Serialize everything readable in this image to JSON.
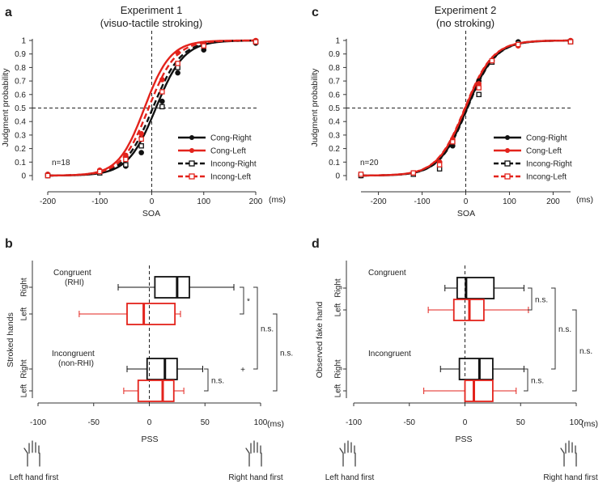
{
  "colors": {
    "black": "#111111",
    "red": "#e3231c",
    "dash": "#222222"
  },
  "chart_data": [
    {
      "panel": "a",
      "type": "line",
      "title": "Experiment 1",
      "subtitle": "(visuo-tactile stroking)",
      "xlabel": "SOA",
      "xunit": "(ms)",
      "ylabel": "Judgment probability",
      "xlim": [
        -200,
        200
      ],
      "ylim": [
        0,
        1
      ],
      "xticks": [
        "-200",
        "-100",
        "0",
        "100",
        "200"
      ],
      "yticks": [
        "0",
        "0.1",
        "0.2",
        "0.3",
        "0.4",
        "0.5",
        "0.6",
        "0.7",
        "0.8",
        "0.9",
        "1"
      ],
      "n_label": "n=18",
      "reference_lines": {
        "x": 0,
        "y": 0.5
      },
      "series": [
        {
          "name": "Cong-Right",
          "color": "black",
          "style": "solid",
          "marker": "filled-circle",
          "mu": 8,
          "s": 27,
          "points": [
            [
              -200,
              0.0
            ],
            [
              -100,
              0.03
            ],
            [
              -50,
              0.07
            ],
            [
              -20,
              0.17
            ],
            [
              20,
              0.55
            ],
            [
              50,
              0.76
            ],
            [
              100,
              0.93
            ],
            [
              200,
              0.98
            ]
          ]
        },
        {
          "name": "Cong-Left",
          "color": "red",
          "style": "solid",
          "marker": "filled-circle",
          "mu": -14,
          "s": 25,
          "points": [
            [
              -200,
              0.01
            ],
            [
              -100,
              0.04
            ],
            [
              -50,
              0.15
            ],
            [
              -20,
              0.31
            ],
            [
              20,
              0.71
            ],
            [
              50,
              0.91
            ],
            [
              100,
              0.97
            ],
            [
              200,
              1.0
            ]
          ]
        },
        {
          "name": "Incong-Right",
          "color": "black",
          "style": "dashed",
          "marker": "open-square",
          "mu": 2,
          "s": 27,
          "points": [
            [
              -200,
              0.0
            ],
            [
              -100,
              0.02
            ],
            [
              -50,
              0.08
            ],
            [
              -20,
              0.22
            ],
            [
              20,
              0.51
            ],
            [
              50,
              0.8
            ],
            [
              100,
              0.96
            ],
            [
              200,
              0.99
            ]
          ]
        },
        {
          "name": "Incong-Left",
          "color": "red",
          "style": "dashed",
          "marker": "open-square",
          "mu": -6,
          "s": 26,
          "points": [
            [
              -200,
              0.0
            ],
            [
              -100,
              0.03
            ],
            [
              -50,
              0.12
            ],
            [
              -20,
              0.27
            ],
            [
              20,
              0.62
            ],
            [
              50,
              0.83
            ],
            [
              100,
              0.96
            ],
            [
              200,
              0.99
            ]
          ]
        }
      ]
    },
    {
      "panel": "c",
      "type": "line",
      "title": "Experiment 2",
      "subtitle": "(no stroking)",
      "xlabel": "SOA",
      "xunit": "(ms)",
      "ylabel": "Judgment probability",
      "xlim": [
        -240,
        240
      ],
      "ylim": [
        0,
        1
      ],
      "xticks": [
        "-200",
        "-100",
        "0",
        "100",
        "200"
      ],
      "yticks": [
        "0",
        "0.1",
        "0.2",
        "0.3",
        "0.4",
        "0.5",
        "0.6",
        "0.7",
        "0.8",
        "0.9",
        "1"
      ],
      "n_label": "n=20",
      "reference_lines": {
        "x": 0,
        "y": 0.5
      },
      "series": [
        {
          "name": "Cong-Right",
          "color": "black",
          "style": "solid",
          "marker": "filled-circle",
          "mu": 3,
          "s": 32,
          "points": [
            [
              -240,
              0.0
            ],
            [
              -120,
              0.01
            ],
            [
              -60,
              0.1
            ],
            [
              -30,
              0.22
            ],
            [
              30,
              0.7
            ],
            [
              60,
              0.85
            ],
            [
              120,
              0.99
            ],
            [
              240,
              0.99
            ]
          ]
        },
        {
          "name": "Cong-Left",
          "color": "red",
          "style": "solid",
          "marker": "filled-circle",
          "mu": -1,
          "s": 32,
          "points": [
            [
              -240,
              0.0
            ],
            [
              -120,
              0.02
            ],
            [
              -60,
              0.1
            ],
            [
              -30,
              0.27
            ],
            [
              30,
              0.68
            ],
            [
              60,
              0.85
            ],
            [
              120,
              0.96
            ],
            [
              240,
              1.0
            ]
          ]
        },
        {
          "name": "Incong-Right",
          "color": "black",
          "style": "dashed",
          "marker": "open-square",
          "mu": 4,
          "s": 32,
          "points": [
            [
              -240,
              0.0
            ],
            [
              -120,
              0.01
            ],
            [
              -60,
              0.05
            ],
            [
              -30,
              0.25
            ],
            [
              30,
              0.6
            ],
            [
              60,
              0.84
            ],
            [
              120,
              0.98
            ],
            [
              240,
              0.99
            ]
          ]
        },
        {
          "name": "Incong-Left",
          "color": "red",
          "style": "dashed",
          "marker": "open-square",
          "mu": -2,
          "s": 32,
          "points": [
            [
              -240,
              0.01
            ],
            [
              -120,
              0.02
            ],
            [
              -60,
              0.08
            ],
            [
              -30,
              0.25
            ],
            [
              30,
              0.65
            ],
            [
              60,
              0.85
            ],
            [
              120,
              0.97
            ],
            [
              240,
              0.99
            ]
          ]
        }
      ]
    },
    {
      "panel": "b",
      "type": "box",
      "xlabel": "PSS",
      "xunit": "(ms)",
      "ylabel": "Stroked hands",
      "xlim": [
        -100,
        100
      ],
      "xticks": [
        "-100",
        "-50",
        "0",
        "50",
        "100"
      ],
      "group_labels": [
        {
          "line1": "Congruent",
          "line2": "(RHI)"
        },
        {
          "line1": "Incongruent",
          "line2": "(non-RHI)"
        }
      ],
      "boxes": [
        {
          "group": "Congruent",
          "hand": "Right",
          "color": "black",
          "whisker_low": -28,
          "q1": 5,
          "median": 25,
          "q3": 36,
          "whisker_high": 76
        },
        {
          "group": "Congruent",
          "hand": "Left",
          "color": "red",
          "whisker_low": -63,
          "q1": -20,
          "median": -5,
          "q3": 23,
          "whisker_high": 28
        },
        {
          "group": "Incongruent",
          "hand": "Right",
          "color": "black",
          "whisker_low": -20,
          "q1": -2,
          "median": 14,
          "q3": 25,
          "whisker_high": 48
        },
        {
          "group": "Incongruent",
          "hand": "Left",
          "color": "red",
          "whisker_low": -23,
          "q1": -10,
          "median": 12,
          "q3": 22,
          "whisker_high": 31
        }
      ],
      "outliers": [
        {
          "box": 2,
          "value": 84,
          "marker": "+"
        }
      ],
      "significance": [
        {
          "pair": [
            0,
            1
          ],
          "label": "*"
        },
        {
          "pair": [
            2,
            3
          ],
          "label": "n.s."
        },
        {
          "pair": [
            0,
            2
          ],
          "label": "n.s."
        },
        {
          "pair": [
            1,
            3
          ],
          "label": "n.s."
        }
      ],
      "hand_labels": {
        "left": "Left hand first",
        "right": "Right hand first"
      }
    },
    {
      "panel": "d",
      "type": "box",
      "xlabel": "PSS",
      "xunit": "(ms)",
      "ylabel": "Observed fake hand",
      "xlim": [
        -100,
        100
      ],
      "xticks": [
        "-100",
        "-50",
        "0",
        "50",
        "100"
      ],
      "group_labels": [
        {
          "line1": "Congruent",
          "line2": ""
        },
        {
          "line1": "Incongruent",
          "line2": ""
        }
      ],
      "boxes": [
        {
          "group": "Congruent",
          "hand": "Right",
          "color": "black",
          "whisker_low": -18,
          "q1": -7,
          "median": 1,
          "q3": 26,
          "whisker_high": 53
        },
        {
          "group": "Congruent",
          "hand": "Left",
          "color": "red",
          "whisker_low": -33,
          "q1": -10,
          "median": 4,
          "q3": 17,
          "whisker_high": 57
        },
        {
          "group": "Incongruent",
          "hand": "Right",
          "color": "black",
          "whisker_low": -22,
          "q1": -5,
          "median": 13,
          "q3": 25,
          "whisker_high": 53
        },
        {
          "group": "Incongruent",
          "hand": "Left",
          "color": "red",
          "whisker_low": -37,
          "q1": 0,
          "median": 8,
          "q3": 25,
          "whisker_high": 46
        }
      ],
      "outliers": [],
      "significance": [
        {
          "pair": [
            0,
            1
          ],
          "label": "n.s."
        },
        {
          "pair": [
            2,
            3
          ],
          "label": "n.s."
        },
        {
          "pair": [
            0,
            2
          ],
          "label": "n.s."
        },
        {
          "pair": [
            1,
            3
          ],
          "label": "n.s."
        }
      ],
      "hand_labels": {
        "left": "Left hand first",
        "right": "Right hand first"
      }
    }
  ]
}
